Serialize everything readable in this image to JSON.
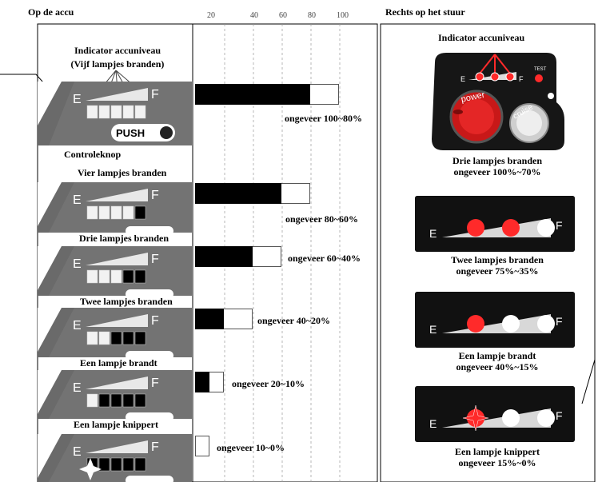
{
  "headers": {
    "left": "Op de accu",
    "right": "Rechts op het stuur"
  },
  "scale_ticks": [
    "20",
    "40",
    "60",
    "80",
    "100"
  ],
  "left_top": {
    "title_line1": "Indicator accuniveau",
    "title_line2": "(Vijf lampjes branden)",
    "push_label": "PUSH",
    "control_label": "Controleknop"
  },
  "rows": [
    {
      "label": "",
      "percent_text": "ongeveer 100~80%",
      "level": 100,
      "lit": 5
    },
    {
      "label": "Vier lampjes branden",
      "percent_text": "ongeveer 80~60%",
      "level": 80,
      "lit": 4
    },
    {
      "label": "Drie lampjes branden",
      "percent_text": "ongeveer 60~40%",
      "level": 60,
      "lit": 3
    },
    {
      "label": "Twee lampjes branden",
      "percent_text": "ongeveer 40~20%",
      "level": 40,
      "lit": 2
    },
    {
      "label": "Een lampje brandt",
      "percent_text": "ongeveer 20~10%",
      "level": 20,
      "lit": 1
    },
    {
      "label": "Een lampje knippert",
      "percent_text": "ongeveer 10~0%",
      "level": 10,
      "lit": 0
    }
  ],
  "right": {
    "indicator_title": "Indicator accuniveau",
    "device_labels": {
      "e": "E",
      "f": "F",
      "test": "TEST",
      "power": "power",
      "cruise": "cruise"
    },
    "captions": [
      {
        "line1": "Drie lampjes branden",
        "line2": "ongeveer 100%~70%"
      },
      {
        "line1": "Twee lampjes branden",
        "line2": "ongeveer 75%~35%"
      },
      {
        "line1": "Een lampje brandt",
        "line2": "ongeveer 40%~15%"
      },
      {
        "line1": "Een lampje knippert",
        "line2": "ongeveer 15%~0%"
      }
    ]
  },
  "panel_letters": {
    "e": "E",
    "f": "F"
  },
  "colors": {
    "lit_red": "#ff2a2a",
    "panel_gray": "#6a6a6a",
    "dark": "#111111"
  }
}
